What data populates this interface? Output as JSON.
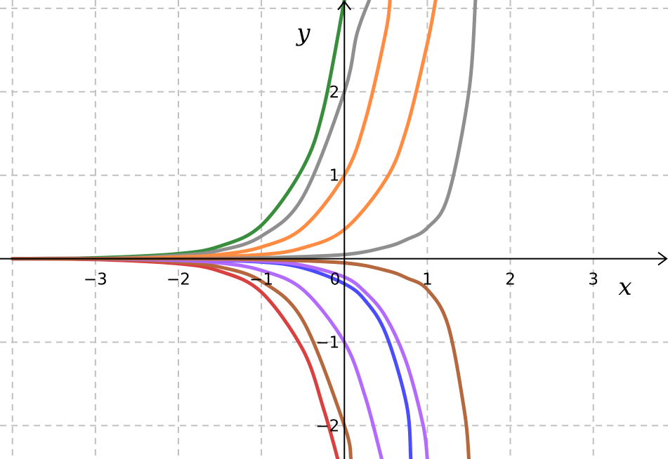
{
  "chart_data": {
    "type": "line",
    "title": "",
    "xlabel": "x",
    "ylabel": "y",
    "xlim": [
      -4.15,
      3.9
    ],
    "ylim": [
      -2.4,
      3.1
    ],
    "grid": true,
    "x_ticks": [
      {
        "value": -3,
        "label": "−3"
      },
      {
        "value": -2,
        "label": "−2"
      },
      {
        "value": -1,
        "label": "−1"
      },
      {
        "value": 0,
        "label": "0"
      },
      {
        "value": 1,
        "label": "1"
      },
      {
        "value": 2,
        "label": "2"
      },
      {
        "value": 3,
        "label": "3"
      }
    ],
    "y_ticks": [
      {
        "value": -2,
        "label": "−2"
      },
      {
        "value": -1,
        "label": "−1"
      },
      {
        "value": 1,
        "label": "1"
      },
      {
        "value": 2,
        "label": "2"
      }
    ],
    "series": [
      {
        "color": "#388e3c",
        "x": [
          -4,
          -3,
          -2,
          -1.5,
          -1,
          -0.5,
          -0.25,
          0.0
        ],
        "y": [
          0.0,
          0.01,
          0.06,
          0.15,
          0.4,
          1.09,
          1.8,
          3.1
        ]
      },
      {
        "color": "#8f8f8f",
        "x": [
          -4,
          -3,
          -2,
          -1.5,
          -1,
          -0.5,
          0,
          0.15,
          0.3
        ],
        "y": [
          0.0,
          0.0,
          0.04,
          0.1,
          0.27,
          0.74,
          2.0,
          2.69,
          3.1
        ]
      },
      {
        "color": "#ff8c42",
        "x": [
          -4,
          -3,
          -2,
          -1.5,
          -1,
          -0.5,
          0,
          0.25,
          0.5,
          0.55
        ],
        "y": [
          0.0,
          0.0,
          0.02,
          0.05,
          0.14,
          0.37,
          1.0,
          1.65,
          2.72,
          3.1
        ]
      },
      {
        "color": "#ff8c42",
        "x": [
          -4,
          -3,
          -2,
          -1,
          -0.5,
          0,
          0.5,
          0.75,
          1.0,
          1.1
        ],
        "y": [
          0.0,
          0.0,
          0.01,
          0.05,
          0.13,
          0.35,
          0.95,
          1.56,
          2.58,
          3.1
        ]
      },
      {
        "color": "#8f8f8f",
        "x": [
          -4,
          -3,
          -2,
          -1,
          0,
          0.5,
          0.75,
          1.0,
          1.25,
          1.5,
          1.58
        ],
        "y": [
          0.0,
          0.0,
          0.0,
          0.01,
          0.05,
          0.14,
          0.23,
          0.37,
          0.75,
          2.0,
          3.1
        ]
      },
      {
        "color": "#d94141",
        "x": [
          -4,
          -3,
          -2,
          -1.5,
          -1,
          -0.5,
          -0.25,
          -0.08
        ],
        "y": [
          0.0,
          -0.01,
          -0.06,
          -0.15,
          -0.4,
          -1.09,
          -1.8,
          -2.4
        ]
      },
      {
        "color": "#b5673e",
        "x": [
          -4,
          -3,
          -2,
          -1.5,
          -1,
          -0.5,
          0,
          0.08
        ],
        "y": [
          0.0,
          0.0,
          -0.04,
          -0.1,
          -0.27,
          -0.74,
          -2.0,
          -2.4
        ]
      },
      {
        "color": "#b36bff",
        "x": [
          -4,
          -3,
          -2,
          -1.5,
          -1,
          -0.5,
          0,
          0.25,
          0.45
        ],
        "y": [
          0.0,
          0.0,
          -0.02,
          -0.05,
          -0.14,
          -0.37,
          -1.0,
          -1.65,
          -2.4
        ]
      },
      {
        "color": "#4c4cff",
        "x": [
          -4,
          -3,
          -2,
          -1,
          -0.5,
          0,
          0.25,
          0.5,
          0.75,
          0.8
        ],
        "y": [
          0.0,
          0.0,
          -0.01,
          -0.04,
          -0.11,
          -0.3,
          -0.5,
          -0.9,
          -1.75,
          -2.4
        ]
      },
      {
        "color": "#b36bff",
        "x": [
          -4,
          -3,
          -2,
          -1,
          -0.5,
          0,
          0.25,
          0.5,
          0.75,
          0.95,
          1.0
        ],
        "y": [
          0.0,
          0.0,
          -0.01,
          -0.03,
          -0.08,
          -0.22,
          -0.4,
          -0.7,
          -1.25,
          -2.0,
          -2.4
        ]
      },
      {
        "color": "#b5673e",
        "x": [
          -4,
          -3,
          -2,
          -1,
          0,
          0.5,
          0.75,
          1.0,
          1.25,
          1.45,
          1.5
        ],
        "y": [
          0.0,
          0.0,
          0.0,
          -0.01,
          -0.05,
          -0.14,
          -0.23,
          -0.37,
          -0.8,
          -1.85,
          -2.4
        ]
      }
    ]
  }
}
